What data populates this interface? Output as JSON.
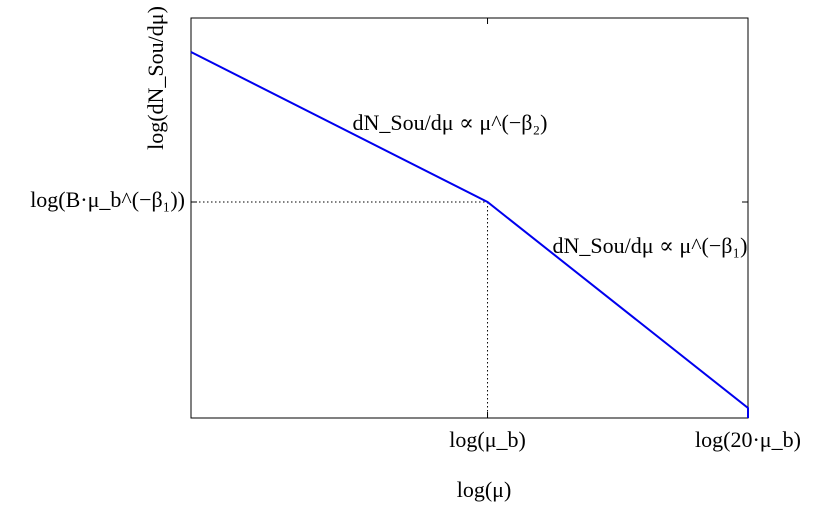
{
  "chart_data": {
    "type": "line",
    "xlabel": "log(μ)",
    "ylabel": "log(dN_Sou/dμ)",
    "x": [
      -1.48,
      0,
      1.3,
      1.3
    ],
    "series": [
      {
        "color": "#0000ee",
        "values": [
          0.75,
          0,
          -1.03,
          -1.08
        ]
      }
    ],
    "xlim": [
      -1.48,
      1.3
    ],
    "ylim": [
      -1.08,
      0.92
    ],
    "xticks": [
      {
        "value": 0,
        "label": "log(μ_b)"
      },
      {
        "value": 1.3,
        "label": "log(20·μ_b)"
      }
    ],
    "yticks": [
      {
        "value": 0,
        "label": "log(B·μ_b^(−β₁))"
      }
    ],
    "annotations": [
      "dN_Sou/dμ ∝ μ^(−β₂)",
      "dN_Sou/dμ ∝ μ^(−β₁)"
    ]
  }
}
